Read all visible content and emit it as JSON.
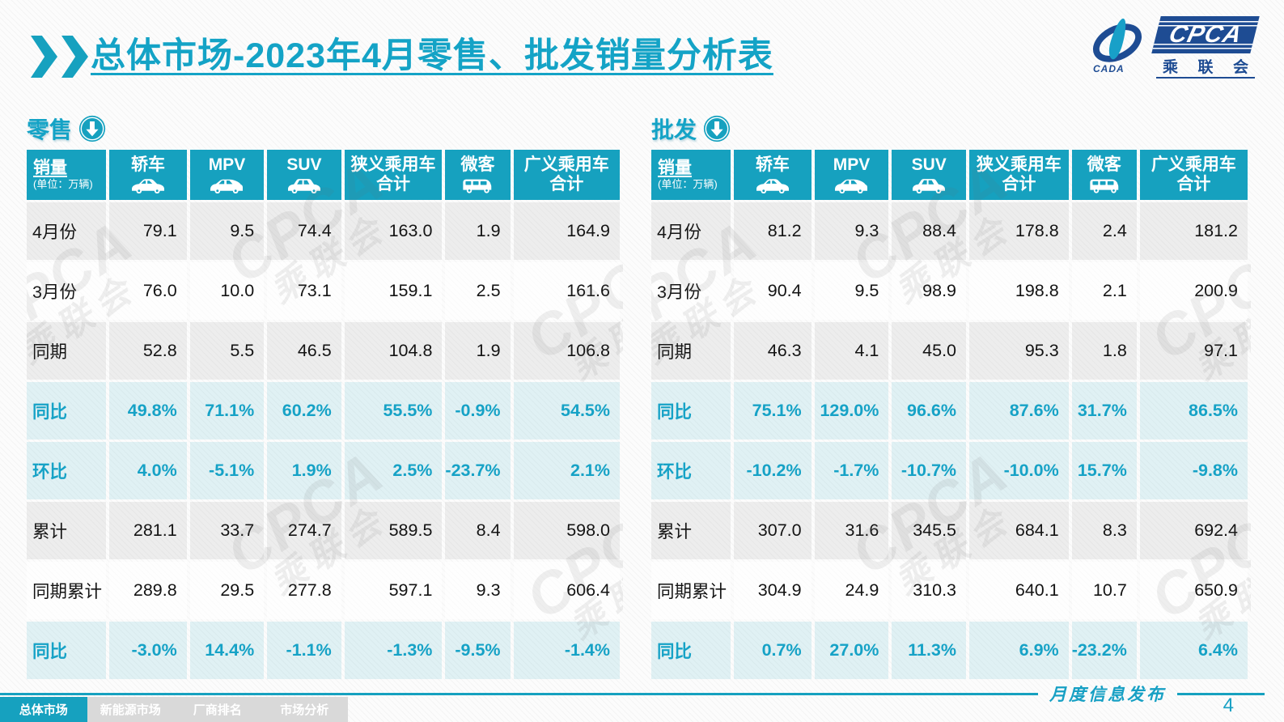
{
  "header": {
    "title": "总体市场-2023年4月零售、批发销量分析表",
    "logo": {
      "acronym": "CPCA",
      "org_cn": "乘联会",
      "swoosh_text": "CADA"
    }
  },
  "colors": {
    "accent_teal": "#16a1bf",
    "percent_text": "#16a2c6",
    "logo_blue": "#1e4c93",
    "highlight_row_bg": "#e4f2f8"
  },
  "unit_note": "(单位：万辆)",
  "columns": [
    {
      "label": "销量",
      "note": "(单位：万辆)"
    },
    {
      "label": "轿车",
      "icon": "sedan-car-icon"
    },
    {
      "label": "MPV",
      "icon": "mpv-car-icon"
    },
    {
      "label": "SUV",
      "icon": "suv-car-icon"
    },
    {
      "label": "狭义乘用车",
      "label2": "合计"
    },
    {
      "label": "微客",
      "icon": "minivan-icon"
    },
    {
      "label": "广义乘用车",
      "label2": "合计"
    }
  ],
  "tables": [
    {
      "section_label": "零售",
      "section_icon": "down-arrow-icon",
      "rows": [
        {
          "label": "4月份",
          "values": [
            "79.1",
            "9.5",
            "74.4",
            "163.0",
            "1.9",
            "164.9"
          ]
        },
        {
          "label": "3月份",
          "values": [
            "76.0",
            "10.0",
            "73.1",
            "159.1",
            "2.5",
            "161.6"
          ]
        },
        {
          "label": "同期",
          "values": [
            "52.8",
            "5.5",
            "46.5",
            "104.8",
            "1.9",
            "106.8"
          ]
        },
        {
          "label": "同比",
          "highlight": true,
          "values": [
            "49.8%",
            "71.1%",
            "60.2%",
            "55.5%",
            "-0.9%",
            "54.5%"
          ]
        },
        {
          "label": "环比",
          "highlight": true,
          "values": [
            "4.0%",
            "-5.1%",
            "1.9%",
            "2.5%",
            "-23.7%",
            "2.1%"
          ]
        },
        {
          "label": "累计",
          "values": [
            "281.1",
            "33.7",
            "274.7",
            "589.5",
            "8.4",
            "598.0"
          ]
        },
        {
          "label": "同期累计",
          "values": [
            "289.8",
            "29.5",
            "277.8",
            "597.1",
            "9.3",
            "606.4"
          ]
        },
        {
          "label": "同比",
          "highlight": true,
          "values": [
            "-3.0%",
            "14.4%",
            "-1.1%",
            "-1.3%",
            "-9.5%",
            "-1.4%"
          ]
        }
      ]
    },
    {
      "section_label": "批发",
      "section_icon": "down-arrow-icon",
      "rows": [
        {
          "label": "4月份",
          "values": [
            "81.2",
            "9.3",
            "88.4",
            "178.8",
            "2.4",
            "181.2"
          ]
        },
        {
          "label": "3月份",
          "values": [
            "90.4",
            "9.5",
            "98.9",
            "198.8",
            "2.1",
            "200.9"
          ]
        },
        {
          "label": "同期",
          "values": [
            "46.3",
            "4.1",
            "45.0",
            "95.3",
            "1.8",
            "97.1"
          ]
        },
        {
          "label": "同比",
          "highlight": true,
          "values": [
            "75.1%",
            "129.0%",
            "96.6%",
            "87.6%",
            "31.7%",
            "86.5%"
          ]
        },
        {
          "label": "环比",
          "highlight": true,
          "values": [
            "-10.2%",
            "-1.7%",
            "-10.7%",
            "-10.0%",
            "15.7%",
            "-9.8%"
          ]
        },
        {
          "label": "累计",
          "values": [
            "307.0",
            "31.6",
            "345.5",
            "684.1",
            "8.3",
            "692.4"
          ]
        },
        {
          "label": "同期累计",
          "values": [
            "304.9",
            "24.9",
            "310.3",
            "640.1",
            "10.7",
            "650.9"
          ]
        },
        {
          "label": "同比",
          "highlight": true,
          "values": [
            "0.7%",
            "27.0%",
            "11.3%",
            "6.9%",
            "-23.2%",
            "6.4%"
          ]
        }
      ]
    }
  ],
  "watermark": {
    "text_main": "CPCA",
    "text_sub": "乘联会"
  },
  "footer": {
    "tabs": [
      {
        "label": "总体市场",
        "active": true
      },
      {
        "label": "新能源市场",
        "active": false
      },
      {
        "label": "厂商排名",
        "active": false
      },
      {
        "label": "市场分析",
        "active": false
      }
    ],
    "release_note": "月度信息发布",
    "page_number": "4"
  }
}
